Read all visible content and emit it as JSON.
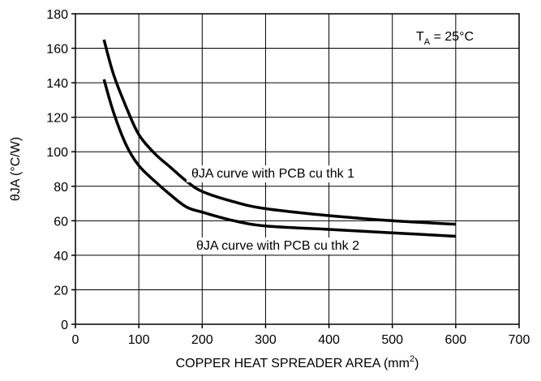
{
  "chart_data": {
    "type": "line",
    "xlabel_main": "COPPER HEAT SPREADER AREA (mm",
    "xlabel_sup": "2",
    "xlabel_end": ")",
    "ylabel": "θJA (°C/W)",
    "xlim": [
      0,
      700
    ],
    "ylim": [
      0,
      180
    ],
    "grid": true,
    "x_ticks": [
      "0",
      "100",
      "200",
      "300",
      "400",
      "500",
      "600",
      "700"
    ],
    "y_ticks": [
      "0",
      "20",
      "40",
      "60",
      "80",
      "100",
      "120",
      "140",
      "160",
      "180"
    ],
    "annotation": {
      "prefix": "T",
      "sub": "A",
      "rest": " = 25°C"
    },
    "series": [
      {
        "name": "θJA curve with PCB cu thk 1",
        "x": [
          45,
          60,
          80,
          100,
          125,
          150,
          175,
          200,
          250,
          300,
          400,
          500,
          600
        ],
        "y": [
          165,
          145,
          126,
          110,
          99,
          91,
          83,
          77,
          71,
          67,
          63,
          60,
          58
        ]
      },
      {
        "name": "θJA curve with PCB cu thk 2",
        "x": [
          45,
          60,
          80,
          100,
          125,
          150,
          175,
          200,
          250,
          300,
          400,
          500,
          600
        ],
        "y": [
          142,
          123,
          104,
          92,
          83,
          75,
          68,
          65,
          60,
          57,
          55,
          53,
          51
        ]
      }
    ]
  }
}
